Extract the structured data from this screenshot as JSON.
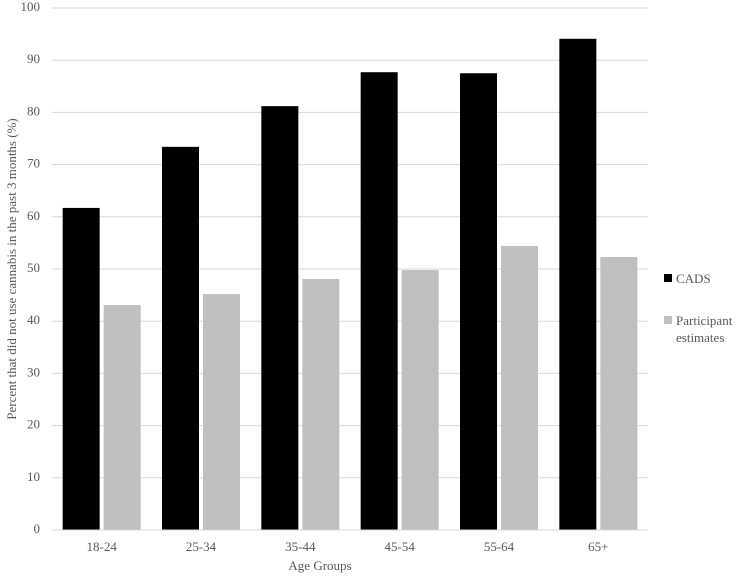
{
  "chart_data": {
    "type": "bar",
    "x_label": "Age Groups",
    "y_label": "Percent that did not use cannabis in the past 3 months (%)",
    "categories": [
      "18-24",
      "25-34",
      "35-44",
      "45-54",
      "55-64",
      "65+"
    ],
    "series": [
      {
        "name": "CADS",
        "color": "#000000",
        "values": [
          61.7,
          73.4,
          81.2,
          87.7,
          87.5,
          94.1
        ]
      },
      {
        "name": "Participant estimates",
        "color": "#bfbfbf",
        "values": [
          43.1,
          45.2,
          48.1,
          49.8,
          54.4,
          52.3
        ]
      }
    ],
    "ylim": [
      0,
      100
    ],
    "yticks": [
      0,
      10,
      20,
      30,
      40,
      50,
      60,
      70,
      80,
      90,
      100
    ],
    "grid": true
  }
}
